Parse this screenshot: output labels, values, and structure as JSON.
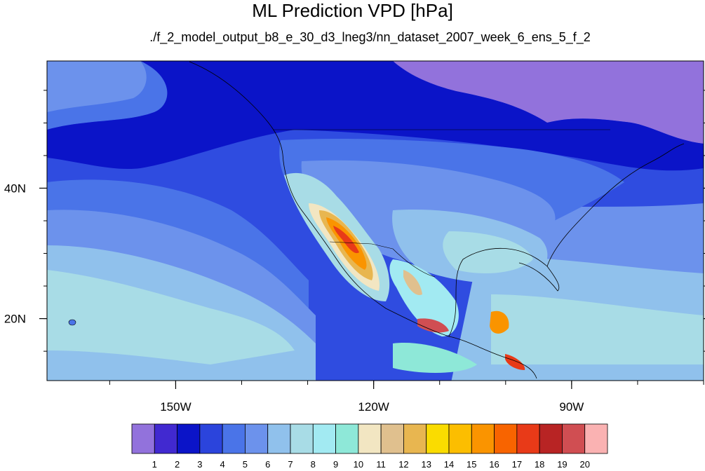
{
  "title": "ML Prediction VPD [hPa]",
  "subtitle": "./f_2_model_output_b8_e_30_d3_lneg3/nn_dataset_2007_week_6_ens_5_f_2",
  "map": {
    "projection": "cylindrical equidistant",
    "lon_range": [
      -169.5,
      -70
    ],
    "lat_range": [
      10.5,
      59.5
    ],
    "lon_ticks": [
      {
        "value": -150,
        "label": "150W"
      },
      {
        "value": -120,
        "label": "120W"
      },
      {
        "value": -90,
        "label": "90W"
      }
    ],
    "lat_ticks": [
      {
        "value": 40,
        "label": "40N"
      },
      {
        "value": 20,
        "label": "20N"
      }
    ],
    "background_color": "#2f4ce0"
  },
  "colorbar": {
    "colors": [
      "#9272dc",
      "#4129d0",
      "#0b14c8",
      "#2b44dc",
      "#4a74e8",
      "#6c92ec",
      "#90c1ec",
      "#a8dce6",
      "#a2eaf2",
      "#8ee8d8",
      "#f2e6c2",
      "#e0c08e",
      "#e8b650",
      "#fadc00",
      "#fcbe00",
      "#fa9400",
      "#f86400",
      "#e83a18",
      "#b82424",
      "#d04e52",
      "#fab2b2"
    ],
    "labels": [
      "1",
      "2",
      "3",
      "4",
      "5",
      "6",
      "7",
      "8",
      "9",
      "10",
      "11",
      "12",
      "13",
      "14",
      "15",
      "16",
      "17",
      "18",
      "19",
      "20"
    ]
  }
}
